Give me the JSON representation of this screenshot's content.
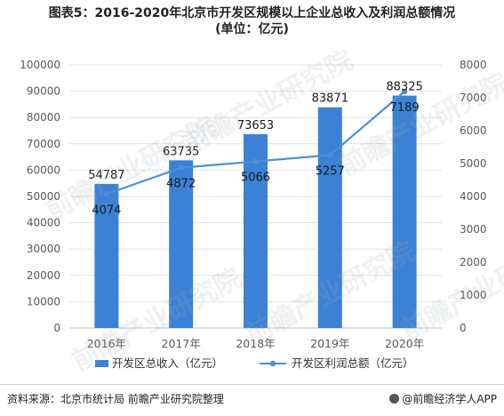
{
  "title_line1": "图表5：2016-2020年北京市开发区规模以上企业总收入及利润总额情况",
  "title_line2": "(单位：亿元)",
  "watermark": "前瞻产业研究院",
  "footer_source": "资料来源：北京市统计局 前瞻产业研究院整理",
  "footer_brand": "@前瞻经济学人APP",
  "colors": {
    "bar": "#3b82d6",
    "line": "#4a8fd8",
    "axis_text": "#595959",
    "grid": "#e3e3e3"
  },
  "chart_data": {
    "type": "bar",
    "categories": [
      "2016年",
      "2017年",
      "2018年",
      "2019年",
      "2020年"
    ],
    "series": [
      {
        "name": "开发区总收入（亿元）",
        "type": "bar",
        "axis": "left",
        "values": [
          54787,
          63735,
          73653,
          83871,
          88325
        ]
      },
      {
        "name": "开发区利润总额（亿元）",
        "type": "line",
        "axis": "right",
        "values": [
          4074,
          4872,
          5066,
          5257,
          7189
        ]
      }
    ],
    "y_left": {
      "min": 0,
      "max": 100000,
      "step": 10000,
      "ticks": [
        "0",
        "10000",
        "20000",
        "30000",
        "40000",
        "50000",
        "60000",
        "70000",
        "80000",
        "90000",
        "100000"
      ]
    },
    "y_right": {
      "min": 0,
      "max": 8000,
      "step": 1000,
      "ticks": [
        "0",
        "1000",
        "2000",
        "3000",
        "4000",
        "5000",
        "6000",
        "7000",
        "8000"
      ]
    },
    "grid": true,
    "legend_position": "bottom"
  }
}
